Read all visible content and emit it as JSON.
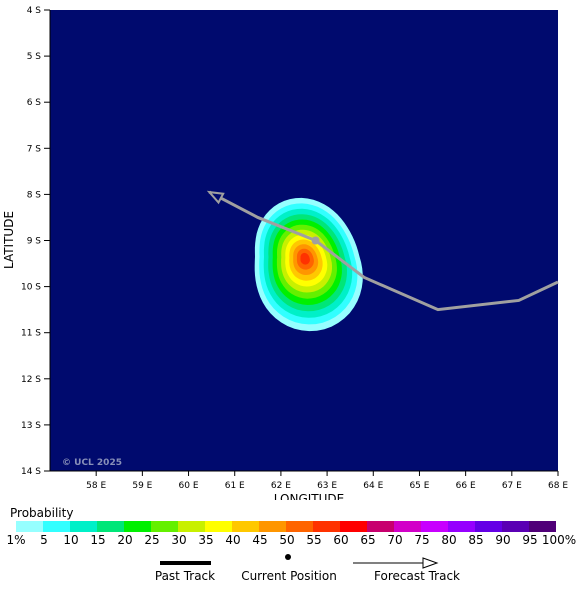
{
  "map": {
    "xlabel": "LONGITUDE",
    "ylabel": "LATITUDE",
    "copyright": "© UCL 2025",
    "lon_ticks": [
      "58 E",
      "59 E",
      "60 E",
      "61 E",
      "62 E",
      "63 E",
      "64 E",
      "65 E",
      "66 E",
      "67 E",
      "68 E"
    ],
    "lat_ticks": [
      "4 S",
      "5 S",
      "6 S",
      "7 S",
      "8 S",
      "9 S",
      "10 S",
      "11 S",
      "12 S",
      "13 S",
      "14 S"
    ],
    "lon_range": [
      57.0,
      68.0
    ],
    "lat_range": [
      -4.0,
      -14.0
    ],
    "background_color": "#000a6e",
    "past_track_color": "#000000",
    "forecast_track_color": "#a0a0a0",
    "current_position": {
      "lon": 62.75,
      "lat": -9.0
    },
    "forecast_track": [
      {
        "lon": 68.0,
        "lat": -9.9
      },
      {
        "lon": 67.15,
        "lat": -10.3
      },
      {
        "lon": 65.4,
        "lat": -10.5
      },
      {
        "lon": 63.8,
        "lat": -9.8
      },
      {
        "lon": 62.75,
        "lat": -9.0
      },
      {
        "lon": 61.5,
        "lat": -8.5
      },
      {
        "lon": 60.45,
        "lat": -7.95
      }
    ],
    "probability_field": {
      "center": {
        "lon": 62.45,
        "lat": -9.35
      },
      "peak_percent": 57,
      "contours_percent": [
        1,
        5,
        10,
        15,
        20,
        25,
        30,
        35,
        40,
        45,
        50,
        55
      ]
    }
  },
  "legend": {
    "title": "Probability",
    "labels": [
      "1%",
      "5",
      "10",
      "15",
      "20",
      "25",
      "30",
      "35",
      "40",
      "45",
      "50",
      "55",
      "60",
      "65",
      "70",
      "75",
      "80",
      "85",
      "90",
      "95",
      "100%"
    ],
    "colors": [
      "#96ffff",
      "#32ffff",
      "#00f0c8",
      "#00e678",
      "#00f000",
      "#64f000",
      "#c8f000",
      "#ffff00",
      "#ffc800",
      "#ff9600",
      "#ff6400",
      "#ff3200",
      "#ff0000",
      "#c8006e",
      "#d200c8",
      "#c800ff",
      "#9600ff",
      "#6400e6",
      "#5a00b4",
      "#500078"
    ]
  },
  "key": {
    "past_track": "Past Track",
    "current_position": "Current Position",
    "forecast_track": "Forecast Track"
  }
}
